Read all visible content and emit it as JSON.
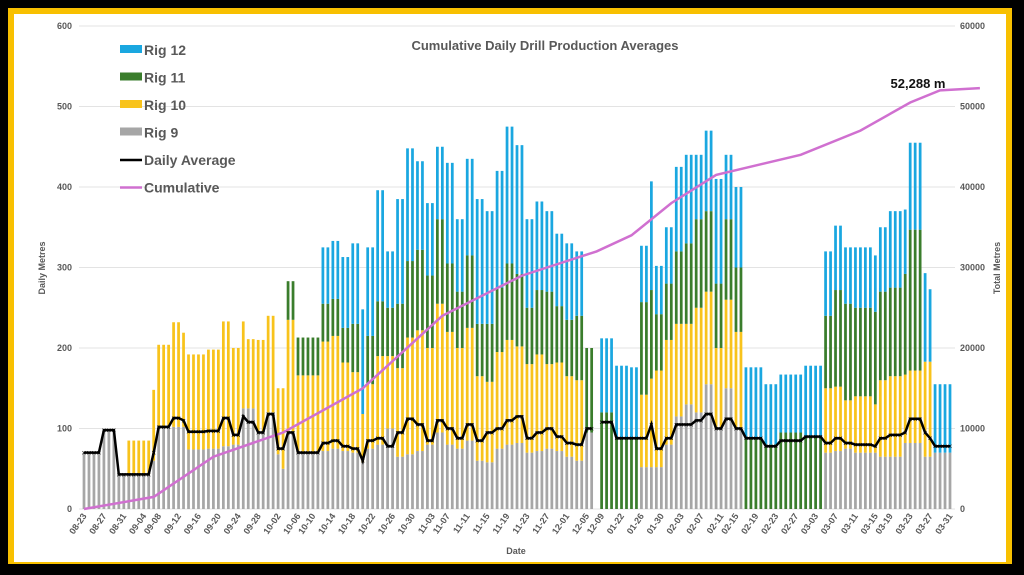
{
  "chart_data": {
    "type": "bar",
    "stacked": true,
    "title": "Cumulative Daily Drill Production Averages",
    "xlabel": "Date",
    "ylabel": "Daily Metres",
    "y2label": "Total Metres",
    "ylim": [
      0,
      600
    ],
    "y2lim": [
      0,
      60000
    ],
    "yticks": [
      0,
      100,
      200,
      300,
      400,
      500,
      600
    ],
    "y2ticks": [
      0,
      10000,
      20000,
      30000,
      40000,
      50000,
      60000
    ],
    "grid": true,
    "legend_position": "top-left",
    "annotation": "52,288 m",
    "xtick_labels": [
      "08-23",
      "08-27",
      "08-31",
      "09-04",
      "09-08",
      "09-12",
      "09-16",
      "09-20",
      "09-24",
      "09-28",
      "10-02",
      "10-06",
      "10-10",
      "10-14",
      "10-18",
      "10-22",
      "10-26",
      "10-30",
      "11-03",
      "11-07",
      "11-11",
      "11-15",
      "11-19",
      "11-23",
      "11-27",
      "12-01",
      "12-05",
      "12-09",
      "01-22",
      "01-26",
      "01-30",
      "02-03",
      "02-07",
      "02-11",
      "02-15",
      "02-19",
      "02-23",
      "02-27",
      "03-03",
      "03-07",
      "03-11",
      "03-15",
      "03-19",
      "03-23",
      "03-27",
      "03-31"
    ],
    "series": [
      {
        "name": "Rig 12",
        "color": "#1aa7e0",
        "type": "bar"
      },
      {
        "name": "Rig 11",
        "color": "#3a7d2c",
        "type": "bar"
      },
      {
        "name": "Rig 10",
        "color": "#f8c31c",
        "type": "bar"
      },
      {
        "name": "Rig 9",
        "color": "#a6a6a6",
        "type": "bar"
      },
      {
        "name": "Daily Average",
        "color": "#000000",
        "type": "line",
        "axis": "left"
      },
      {
        "name": "Cumulative",
        "color": "#d070d0",
        "type": "line",
        "axis": "right"
      }
    ],
    "segments": [
      {
        "n": 4,
        "rig9": 70,
        "rig10": 0,
        "rig11": 0,
        "rig12": 0,
        "avg": 70
      },
      {
        "n": 3,
        "rig9": 98,
        "rig10": 0,
        "rig11": 0,
        "rig12": 0,
        "avg": 98
      },
      {
        "n": 2,
        "rig9": 43,
        "rig10": 0,
        "rig11": 0,
        "rig12": 0,
        "avg": 43
      },
      {
        "n": 5,
        "rig9": 43,
        "rig10": 42,
        "rig11": 0,
        "rig12": 0,
        "avg": 43
      },
      {
        "n": 1,
        "rig9": 60,
        "rig10": 88,
        "rig11": 0,
        "rig12": 0,
        "avg": 70
      },
      {
        "n": 3,
        "rig9": 102,
        "rig10": 102,
        "rig11": 0,
        "rig12": 0,
        "avg": 102
      },
      {
        "n": 2,
        "rig9": 102,
        "rig10": 130,
        "rig11": 0,
        "rig12": 0,
        "avg": 113
      },
      {
        "n": 1,
        "rig9": 102,
        "rig10": 117,
        "rig11": 0,
        "rig12": 0,
        "avg": 110
      },
      {
        "n": 4,
        "rig9": 74,
        "rig10": 118,
        "rig11": 0,
        "rig12": 0,
        "avg": 96
      },
      {
        "n": 3,
        "rig9": 75,
        "rig10": 123,
        "rig11": 0,
        "rig12": 0,
        "avg": 97
      },
      {
        "n": 2,
        "rig9": 78,
        "rig10": 155,
        "rig11": 0,
        "rig12": 0,
        "avg": 113
      },
      {
        "n": 2,
        "rig9": 80,
        "rig10": 120,
        "rig11": 0,
        "rig12": 0,
        "avg": 92
      },
      {
        "n": 1,
        "rig9": 125,
        "rig10": 108,
        "rig11": 0,
        "rig12": 0,
        "avg": 115
      },
      {
        "n": 2,
        "rig9": 125,
        "rig10": 86,
        "rig11": 0,
        "rig12": 0,
        "avg": 108
      },
      {
        "n": 2,
        "rig9": 95,
        "rig10": 115,
        "rig11": 0,
        "rig12": 0,
        "avg": 95
      },
      {
        "n": 2,
        "rig9": 120,
        "rig10": 120,
        "rig11": 0,
        "rig12": 0,
        "avg": 118
      },
      {
        "n": 1,
        "rig9": 68,
        "rig10": 82,
        "rig11": 0,
        "rig12": 0,
        "avg": 75
      },
      {
        "n": 1,
        "rig9": 50,
        "rig10": 100,
        "rig11": 0,
        "rig12": 0,
        "avg": 75
      },
      {
        "n": 2,
        "rig9": 95,
        "rig10": 140,
        "rig11": 48,
        "rig12": 0,
        "avg": 95
      },
      {
        "n": 5,
        "rig9": 70,
        "rig10": 96,
        "rig11": 47,
        "rig12": 0,
        "avg": 70
      },
      {
        "n": 2,
        "rig9": 72,
        "rig10": 136,
        "rig11": 47,
        "rig12": 70,
        "avg": 82
      },
      {
        "n": 2,
        "rig9": 75,
        "rig10": 140,
        "rig11": 46,
        "rig12": 72,
        "avg": 85
      },
      {
        "n": 2,
        "rig9": 72,
        "rig10": 110,
        "rig11": 43,
        "rig12": 88,
        "avg": 78
      },
      {
        "n": 2,
        "rig9": 70,
        "rig10": 100,
        "rig11": 60,
        "rig12": 100,
        "avg": 75
      },
      {
        "n": 1,
        "rig9": 58,
        "rig10": 60,
        "rig11": 0,
        "rig12": 130,
        "avg": 60
      },
      {
        "n": 2,
        "rig9": 75,
        "rig10": 80,
        "rig11": 60,
        "rig12": 110,
        "avg": 85
      },
      {
        "n": 2,
        "rig9": 80,
        "rig10": 110,
        "rig11": 68,
        "rig12": 138,
        "avg": 88
      },
      {
        "n": 2,
        "rig9": 100,
        "rig10": 90,
        "rig11": 60,
        "rig12": 70,
        "avg": 78
      },
      {
        "n": 2,
        "rig9": 65,
        "rig10": 110,
        "rig11": 80,
        "rig12": 130,
        "avg": 95
      },
      {
        "n": 2,
        "rig9": 68,
        "rig10": 145,
        "rig11": 95,
        "rig12": 140,
        "avg": 112
      },
      {
        "n": 2,
        "rig9": 72,
        "rig10": 150,
        "rig11": 100,
        "rig12": 110,
        "avg": 105
      },
      {
        "n": 2,
        "rig9": 80,
        "rig10": 120,
        "rig11": 90,
        "rig12": 90,
        "avg": 85
      },
      {
        "n": 2,
        "rig9": 95,
        "rig10": 160,
        "rig11": 105,
        "rig12": 90,
        "avg": 110
      },
      {
        "n": 2,
        "rig9": 80,
        "rig10": 140,
        "rig11": 85,
        "rig12": 125,
        "avg": 100
      },
      {
        "n": 2,
        "rig9": 75,
        "rig10": 125,
        "rig11": 70,
        "rig12": 90,
        "avg": 88
      },
      {
        "n": 2,
        "rig9": 85,
        "rig10": 140,
        "rig11": 90,
        "rig12": 120,
        "avg": 105
      },
      {
        "n": 2,
        "rig9": 60,
        "rig10": 105,
        "rig11": 65,
        "rig12": 155,
        "avg": 85
      },
      {
        "n": 2,
        "rig9": 58,
        "rig10": 100,
        "rig11": 72,
        "rig12": 140,
        "avg": 95
      },
      {
        "n": 2,
        "rig9": 75,
        "rig10": 120,
        "rig11": 80,
        "rig12": 145,
        "avg": 100
      },
      {
        "n": 2,
        "rig9": 80,
        "rig10": 130,
        "rig11": 95,
        "rig12": 170,
        "avg": 110
      },
      {
        "n": 2,
        "rig9": 82,
        "rig10": 120,
        "rig11": 90,
        "rig12": 160,
        "avg": 115
      },
      {
        "n": 2,
        "rig9": 70,
        "rig10": 110,
        "rig11": 70,
        "rig12": 110,
        "avg": 88
      },
      {
        "n": 2,
        "rig9": 72,
        "rig10": 120,
        "rig11": 80,
        "rig12": 110,
        "avg": 95
      },
      {
        "n": 2,
        "rig9": 75,
        "rig10": 105,
        "rig11": 90,
        "rig12": 100,
        "avg": 100
      },
      {
        "n": 2,
        "rig9": 72,
        "rig10": 110,
        "rig11": 70,
        "rig12": 90,
        "avg": 90
      },
      {
        "n": 2,
        "rig9": 65,
        "rig10": 100,
        "rig11": 70,
        "rig12": 95,
        "avg": 82
      },
      {
        "n": 2,
        "rig9": 60,
        "rig10": 100,
        "rig11": 80,
        "rig12": 80,
        "avg": 80
      },
      {
        "n": 2,
        "rig9": 95,
        "rig10": 0,
        "rig11": 105,
        "rig12": 0,
        "avg": 100
      },
      {
        "n": 1,
        "rig9": 0,
        "rig10": 0,
        "rig11": 0,
        "rig12": 0,
        "avg": null
      },
      {
        "n": 3,
        "rig9": 0,
        "rig10": 0,
        "rig11": 120,
        "rig12": 92,
        "avg": 108
      },
      {
        "n": 3,
        "rig9": 0,
        "rig10": 0,
        "rig11": 88,
        "rig12": 90,
        "avg": 88
      },
      {
        "n": 2,
        "rig9": 0,
        "rig10": 0,
        "rig11": 88,
        "rig12": 88,
        "avg": 88
      },
      {
        "n": 2,
        "rig9": 52,
        "rig10": 90,
        "rig11": 115,
        "rig12": 70,
        "avg": 88
      },
      {
        "n": 1,
        "rig9": 52,
        "rig10": 110,
        "rig11": 110,
        "rig12": 135,
        "avg": 105
      },
      {
        "n": 2,
        "rig9": 52,
        "rig10": 120,
        "rig11": 70,
        "rig12": 60,
        "avg": 75
      },
      {
        "n": 2,
        "rig9": 80,
        "rig10": 130,
        "rig11": 70,
        "rig12": 70,
        "avg": 88
      },
      {
        "n": 2,
        "rig9": 115,
        "rig10": 115,
        "rig11": 90,
        "rig12": 105,
        "avg": 105
      },
      {
        "n": 2,
        "rig9": 130,
        "rig10": 100,
        "rig11": 100,
        "rig12": 110,
        "avg": 105
      },
      {
        "n": 2,
        "rig9": 120,
        "rig10": 130,
        "rig11": 110,
        "rig12": 80,
        "avg": 110
      },
      {
        "n": 2,
        "rig9": 155,
        "rig10": 115,
        "rig11": 100,
        "rig12": 100,
        "avg": 118
      },
      {
        "n": 2,
        "rig9": 100,
        "rig10": 100,
        "rig11": 80,
        "rig12": 130,
        "avg": 100
      },
      {
        "n": 2,
        "rig9": 150,
        "rig10": 110,
        "rig11": 100,
        "rig12": 80,
        "avg": 112
      },
      {
        "n": 2,
        "rig9": 100,
        "rig10": 120,
        "rig11": 80,
        "rig12": 100,
        "avg": 100
      },
      {
        "n": 4,
        "rig9": 0,
        "rig10": 0,
        "rig11": 88,
        "rig12": 88,
        "avg": 88
      },
      {
        "n": 3,
        "rig9": 0,
        "rig10": 0,
        "rig11": 80,
        "rig12": 75,
        "avg": 78
      },
      {
        "n": 5,
        "rig9": 0,
        "rig10": 0,
        "rig11": 95,
        "rig12": 72,
        "avg": 85
      },
      {
        "n": 4,
        "rig9": 0,
        "rig10": 0,
        "rig11": 90,
        "rig12": 88,
        "avg": 90
      },
      {
        "n": 2,
        "rig9": 70,
        "rig10": 80,
        "rig11": 90,
        "rig12": 80,
        "avg": 82
      },
      {
        "n": 2,
        "rig9": 72,
        "rig10": 80,
        "rig11": 120,
        "rig12": 80,
        "avg": 88
      },
      {
        "n": 2,
        "rig9": 75,
        "rig10": 60,
        "rig11": 120,
        "rig12": 70,
        "avg": 82
      },
      {
        "n": 4,
        "rig9": 70,
        "rig10": 70,
        "rig11": 110,
        "rig12": 75,
        "avg": 80
      },
      {
        "n": 1,
        "rig9": 70,
        "rig10": 60,
        "rig11": 115,
        "rig12": 70,
        "avg": 78
      },
      {
        "n": 2,
        "rig9": 65,
        "rig10": 95,
        "rig11": 110,
        "rig12": 80,
        "avg": 88
      },
      {
        "n": 3,
        "rig9": 65,
        "rig10": 100,
        "rig11": 110,
        "rig12": 95,
        "avg": 92
      },
      {
        "n": 1,
        "rig9": 82,
        "rig10": 85,
        "rig11": 125,
        "rig12": 80,
        "avg": 95
      },
      {
        "n": 3,
        "rig9": 82,
        "rig10": 90,
        "rig11": 175,
        "rig12": 108,
        "avg": 112
      },
      {
        "n": 1,
        "rig9": 65,
        "rig10": 118,
        "rig11": 0,
        "rig12": 110,
        "avg": 95
      },
      {
        "n": 1,
        "rig9": 65,
        "rig10": 118,
        "rig11": 0,
        "rig12": 90,
        "avg": 88
      },
      {
        "n": 4,
        "rig9": 70,
        "rig10": 0,
        "rig11": 0,
        "rig12": 85,
        "avg": 78
      }
    ],
    "cumulative_points": [
      [
        0,
        0
      ],
      [
        14,
        1500
      ],
      [
        26,
        6500
      ],
      [
        40,
        9500
      ],
      [
        56,
        15000
      ],
      [
        72,
        24000
      ],
      [
        88,
        29000
      ],
      [
        103,
        32000
      ],
      [
        110,
        34000
      ],
      [
        118,
        38000
      ],
      [
        127,
        41500
      ],
      [
        144,
        44000
      ],
      [
        156,
        47000
      ],
      [
        166,
        50500
      ],
      [
        172,
        52000
      ],
      [
        180,
        52288
      ]
    ]
  },
  "legend": [
    {
      "label": "Rig 12",
      "kind": "box",
      "color": "#1aa7e0"
    },
    {
      "label": "Rig 11",
      "kind": "box",
      "color": "#3a7d2c"
    },
    {
      "label": "Rig 10",
      "kind": "box",
      "color": "#f8c31c"
    },
    {
      "label": "Rig 9",
      "kind": "box",
      "color": "#a6a6a6"
    },
    {
      "label": "Daily Average",
      "kind": "line",
      "color": "#000000"
    },
    {
      "label": "Cumulative",
      "kind": "line",
      "color": "#d070d0"
    }
  ]
}
